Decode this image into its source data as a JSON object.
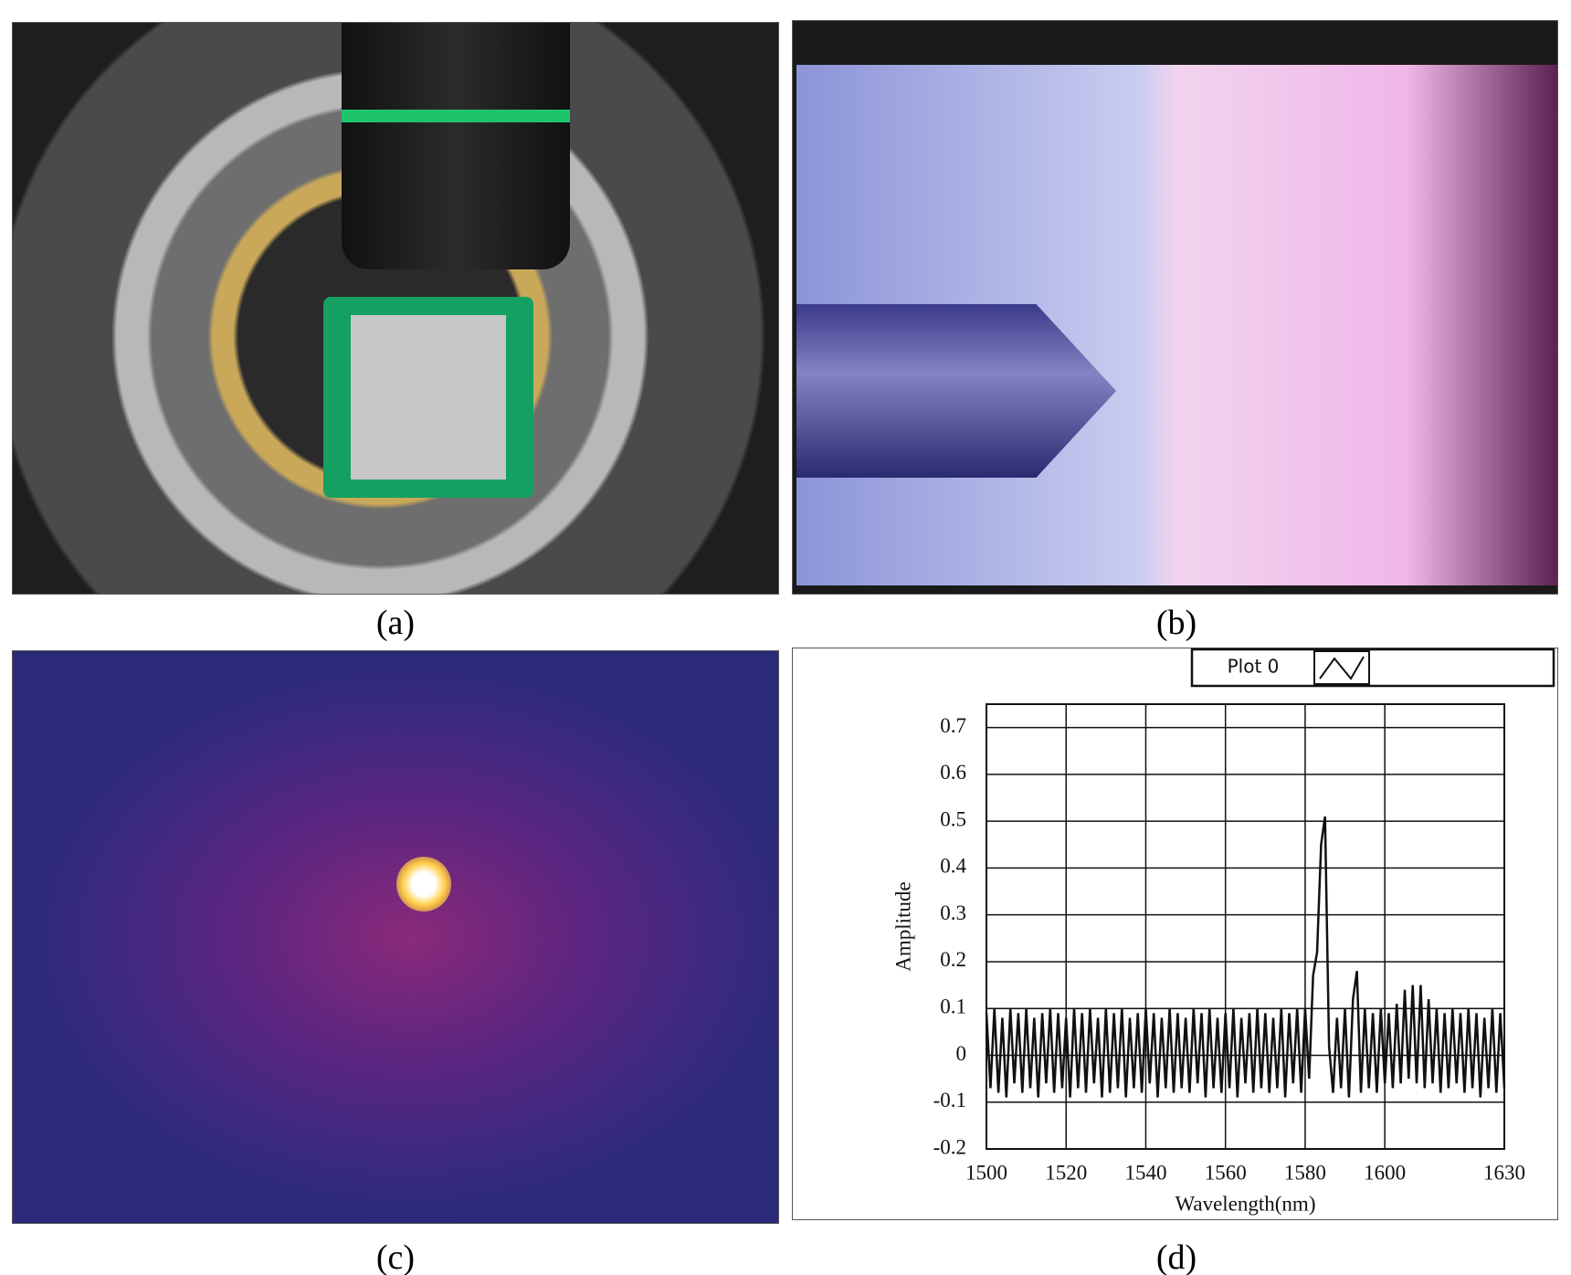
{
  "panels": [
    "(a)",
    "(b)",
    "(c)",
    "(d)"
  ],
  "chart_data": {
    "type": "line",
    "xlabel": "Wavelength(nm)",
    "ylabel": "Amplitude",
    "xlim": [
      1500,
      1630
    ],
    "ylim": [
      -0.2,
      0.75
    ],
    "xticks": [
      1500,
      1520,
      1540,
      1560,
      1580,
      1600,
      1630
    ],
    "yticks": [
      -0.2,
      -0.1,
      0,
      0.1,
      0.2,
      0.3,
      0.4,
      0.5,
      0.6,
      0.7
    ],
    "grid": true,
    "legend": "top-right",
    "x": [
      1500,
      1501,
      1502,
      1503,
      1504,
      1505,
      1506,
      1507,
      1508,
      1509,
      1510,
      1511,
      1512,
      1513,
      1514,
      1515,
      1516,
      1517,
      1518,
      1519,
      1520,
      1521,
      1522,
      1523,
      1524,
      1525,
      1526,
      1527,
      1528,
      1529,
      1530,
      1531,
      1532,
      1533,
      1534,
      1535,
      1536,
      1537,
      1538,
      1539,
      1540,
      1541,
      1542,
      1543,
      1544,
      1545,
      1546,
      1547,
      1548,
      1549,
      1550,
      1551,
      1552,
      1553,
      1554,
      1555,
      1556,
      1557,
      1558,
      1559,
      1560,
      1561,
      1562,
      1563,
      1564,
      1565,
      1566,
      1567,
      1568,
      1569,
      1570,
      1571,
      1572,
      1573,
      1574,
      1575,
      1576,
      1577,
      1578,
      1579,
      1580,
      1581,
      1582,
      1583,
      1584,
      1585,
      1586,
      1587,
      1588,
      1589,
      1590,
      1591,
      1592,
      1593,
      1594,
      1595,
      1596,
      1597,
      1598,
      1599,
      1600,
      1601,
      1602,
      1603,
      1604,
      1605,
      1606,
      1607,
      1608,
      1609,
      1610,
      1611,
      1612,
      1613,
      1614,
      1615,
      1616,
      1617,
      1618,
      1619,
      1620,
      1621,
      1622,
      1623,
      1624,
      1625,
      1626,
      1627,
      1628,
      1629,
      1630
    ],
    "series": [
      {
        "name": "Plot 0",
        "color": "#111111",
        "values": [
          0.09,
          -0.07,
          0.1,
          -0.08,
          0.08,
          -0.09,
          0.1,
          -0.06,
          0.09,
          -0.08,
          0.1,
          -0.07,
          0.08,
          -0.09,
          0.09,
          -0.06,
          0.1,
          -0.08,
          0.09,
          -0.07,
          0.08,
          -0.09,
          0.1,
          -0.07,
          0.09,
          -0.08,
          0.1,
          -0.06,
          0.08,
          -0.09,
          0.1,
          -0.08,
          0.09,
          -0.07,
          0.1,
          -0.09,
          0.08,
          -0.07,
          0.09,
          -0.08,
          0.1,
          -0.06,
          0.09,
          -0.09,
          0.08,
          -0.07,
          0.1,
          -0.08,
          0.09,
          -0.07,
          0.08,
          -0.08,
          0.1,
          -0.06,
          0.09,
          -0.09,
          0.1,
          -0.07,
          0.08,
          -0.08,
          0.09,
          -0.07,
          0.1,
          -0.09,
          0.08,
          -0.06,
          0.09,
          -0.08,
          0.1,
          -0.07,
          0.09,
          -0.08,
          0.08,
          -0.07,
          0.1,
          -0.09,
          0.09,
          -0.06,
          0.1,
          -0.08,
          0.1,
          -0.05,
          0.17,
          0.22,
          0.45,
          0.51,
          0.02,
          -0.08,
          0.08,
          -0.07,
          0.1,
          -0.09,
          0.12,
          0.18,
          -0.08,
          0.1,
          -0.07,
          0.09,
          -0.08,
          0.1,
          -0.06,
          0.09,
          -0.07,
          0.11,
          -0.06,
          0.14,
          -0.05,
          0.15,
          -0.06,
          0.15,
          -0.07,
          0.12,
          -0.06,
          0.1,
          -0.08,
          0.09,
          -0.07,
          0.1,
          -0.06,
          0.09,
          -0.08,
          0.1,
          -0.07,
          0.09,
          -0.09,
          0.08,
          -0.07,
          0.1,
          -0.08,
          0.09,
          -0.07
        ]
      }
    ]
  }
}
